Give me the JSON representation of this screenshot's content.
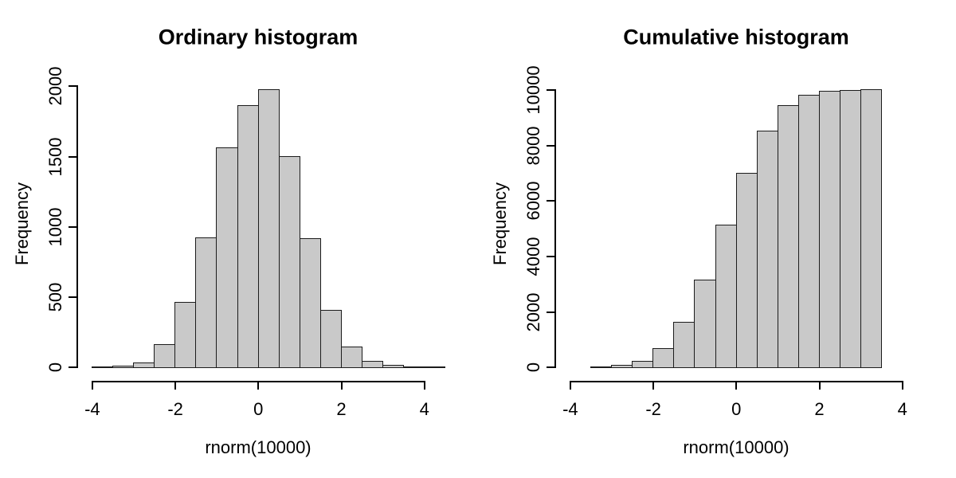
{
  "style": {
    "background": "#ffffff",
    "bar_fill": "#c9c9c9",
    "bar_border": "#1c1c1c",
    "axis_color": "#000000",
    "text_color": "#000000"
  },
  "chart_data": [
    {
      "type": "bar",
      "subtype": "histogram",
      "title": "Ordinary histogram",
      "xlabel": "rnorm(10000)",
      "ylabel": "Frequency",
      "bin_start": -4,
      "bin_width": 0.5,
      "counts": [
        2,
        8,
        30,
        160,
        460,
        920,
        1560,
        1860,
        1975,
        1500,
        915,
        405,
        145,
        40,
        12,
        5,
        3
      ],
      "xlim": [
        -4,
        4
      ],
      "ylim": [
        0,
        2000
      ],
      "xticks": [
        -4,
        -2,
        0,
        2,
        4
      ],
      "yticks": [
        0,
        500,
        1000,
        1500,
        2000
      ],
      "grid": false,
      "legend": null
    },
    {
      "type": "bar",
      "subtype": "cumulative-histogram",
      "title": "Cumulative histogram",
      "xlabel": "rnorm(10000)",
      "ylabel": "Frequency",
      "bin_start": -3.5,
      "bin_width": 0.5,
      "counts": [
        10,
        60,
        220,
        690,
        1630,
        3150,
        5120,
        7000,
        8520,
        9430,
        9810,
        9940,
        9985,
        10000
      ],
      "xlim": [
        -4,
        4
      ],
      "ylim": [
        0,
        10000
      ],
      "xticks": [
        -4,
        -2,
        0,
        2,
        4
      ],
      "yticks": [
        0,
        2000,
        4000,
        6000,
        8000,
        10000
      ],
      "grid": false,
      "legend": null
    }
  ]
}
